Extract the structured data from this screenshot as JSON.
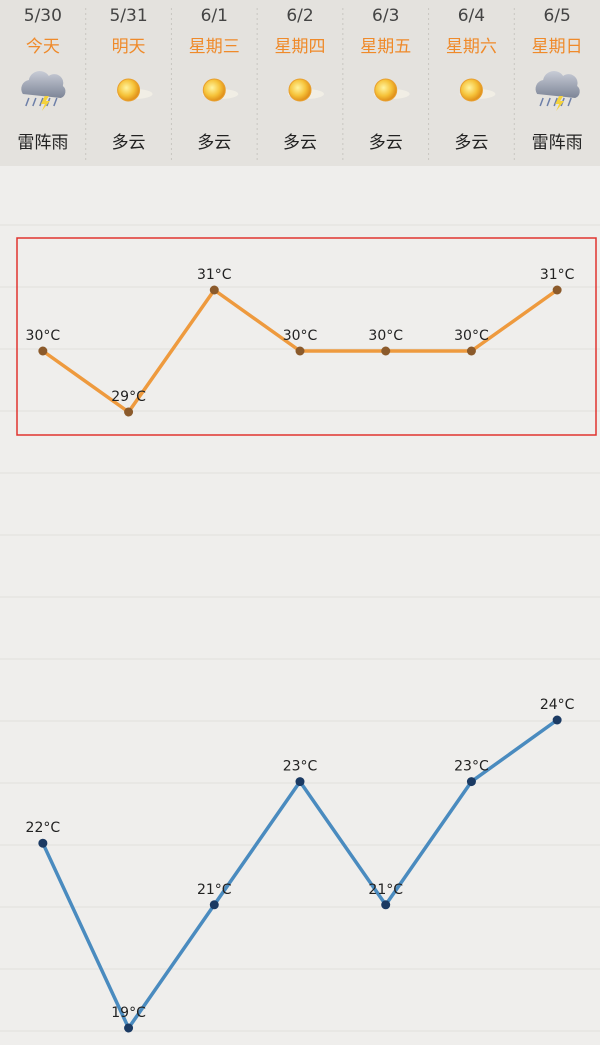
{
  "days": [
    {
      "date": "5/30",
      "label": "今天",
      "condition": "雷阵雨",
      "icon": "thunderstorm"
    },
    {
      "date": "5/31",
      "label": "明天",
      "condition": "多云",
      "icon": "sun"
    },
    {
      "date": "6/1",
      "label": "星期三",
      "condition": "多云",
      "icon": "sun"
    },
    {
      "date": "6/2",
      "label": "星期四",
      "condition": "多云",
      "icon": "sun"
    },
    {
      "date": "6/3",
      "label": "星期五",
      "condition": "多云",
      "icon": "sun"
    },
    {
      "date": "6/4",
      "label": "星期六",
      "condition": "多云",
      "icon": "sun"
    },
    {
      "date": "6/5",
      "label": "星期日",
      "condition": "雷阵雨",
      "icon": "thunderstorm"
    }
  ],
  "chart_data": [
    {
      "type": "line",
      "values": [
        30,
        29,
        31,
        30,
        30,
        30,
        31
      ],
      "value_labels": [
        "30°C",
        "29°C",
        "31°C",
        "30°C",
        "30°C",
        "30°C",
        "31°C"
      ],
      "color": "#ee9a3e",
      "point_color": "#8b5a2b",
      "ylim": [
        29,
        31
      ]
    },
    {
      "type": "line",
      "values": [
        22,
        19,
        21,
        23,
        21,
        23,
        24
      ],
      "value_labels": [
        "22°C",
        "19°C",
        "21°C",
        "23°C",
        "21°C",
        "23°C",
        "24°C"
      ],
      "color": "#4a8bbf",
      "point_color": "#1b3a63",
      "ylim": [
        19,
        24
      ]
    }
  ]
}
